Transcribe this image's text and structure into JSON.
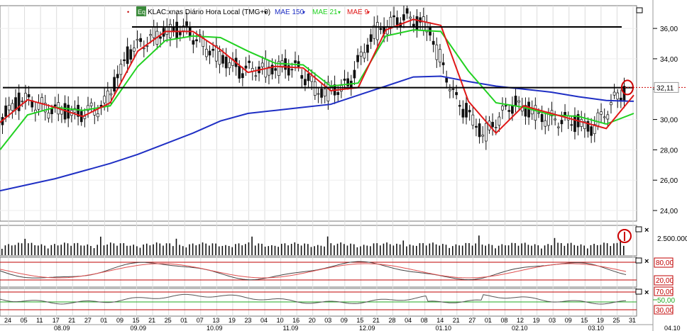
{
  "legend": {
    "symbol_tag": "Eq",
    "ticker": "KLAC:xnas Diário Hora Local (TMG+0)",
    "mae150": "MAE 150",
    "mae21": "MAE 21",
    "mae9": "MAE 9"
  },
  "price_axis": {
    "ticks": [
      "36,00",
      "34,00",
      "32,00",
      "30,00",
      "28,00",
      "26,00",
      "24,00"
    ],
    "tick_values": [
      36,
      34,
      32,
      30,
      28,
      26,
      24
    ],
    "current": "32,11",
    "current_value": 32.11
  },
  "volume_axis": {
    "label": "2.500.000"
  },
  "stoch_axis": {
    "labels": [
      "80,00",
      "20,00"
    ]
  },
  "rsi_axis": {
    "labels": [
      "70,00",
      "50,00",
      "30,00"
    ]
  },
  "x_axis": {
    "days": [
      "24",
      "05",
      "11",
      "17",
      "21",
      "27",
      "01",
      "09",
      "15",
      "21",
      "25",
      "01",
      "07",
      "13",
      "19",
      "23",
      "04",
      "10",
      "16",
      "20",
      "03",
      "09",
      "15",
      "21",
      "28",
      "04",
      "08",
      "14",
      "21",
      "27",
      "01",
      "08",
      "12",
      "19",
      "03",
      "09",
      "15",
      "19",
      "25",
      "31"
    ],
    "months": [
      "08.09",
      "09.09",
      "10.09",
      "11.09",
      "12.09",
      "01.10",
      "02.10",
      "03.10",
      "04.10"
    ]
  },
  "colors": {
    "mae150": "#1f2fc4",
    "mae21": "#22d122",
    "mae9": "#e01818",
    "candle_up": "#ffffff",
    "candle_down": "#111111",
    "resistance": "#000000",
    "current_marker": "#cc0000",
    "osc_band": "#c00000",
    "rsi_mid": "#22aa22"
  },
  "chart_data": {
    "type": "line",
    "ylim": [
      23.3,
      37.5
    ],
    "resistance_levels": [
      36.1,
      32.1
    ],
    "last_price": 32.11,
    "volume_reference": "2.500.000",
    "stochastic_levels": [
      80,
      20
    ],
    "rsi_levels": [
      70,
      50,
      30
    ],
    "series": [
      {
        "name": "MAE 150",
        "values": [
          25.3,
          25.7,
          26.1,
          26.6,
          27.1,
          27.7,
          28.4,
          29.1,
          29.9,
          30.4,
          30.6,
          30.8,
          31.0,
          31.6,
          32.2,
          32.8,
          32.85,
          32.5,
          32.2,
          32.0,
          31.8,
          31.5,
          31.25,
          31.2
        ]
      },
      {
        "name": "MAE 21",
        "values": [
          28.0,
          30.3,
          30.8,
          30.6,
          30.9,
          33.5,
          35.2,
          35.5,
          35.4,
          34.5,
          33.7,
          33.6,
          32.2,
          32.4,
          35.5,
          35.9,
          35.8,
          33.2,
          31.1,
          30.8,
          30.3,
          30.2,
          29.7,
          30.4
        ]
      },
      {
        "name": "MAE 9",
        "values": [
          29.8,
          31.3,
          30.8,
          30.2,
          31.1,
          34.5,
          35.8,
          35.8,
          34.6,
          33.1,
          33.5,
          33.4,
          31.9,
          32.1,
          35.9,
          36.6,
          36.2,
          31.2,
          29.1,
          30.9,
          30.4,
          29.9,
          29.4,
          31.6
        ]
      }
    ]
  }
}
